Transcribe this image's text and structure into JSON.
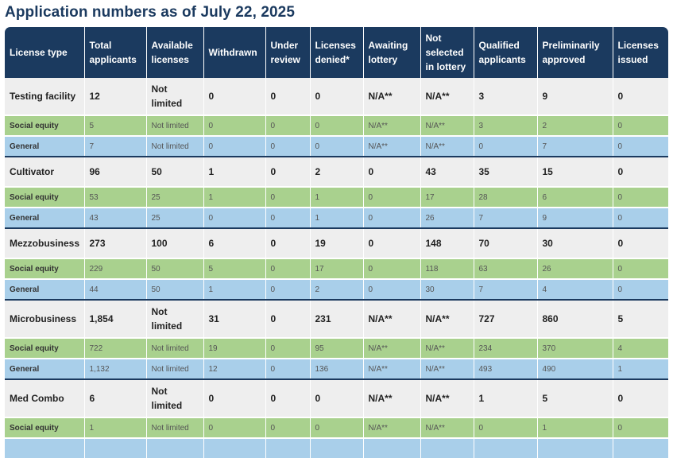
{
  "title": "Application numbers as of July 22, 2025",
  "columns": [
    "License type",
    "Total applicants",
    "Available licenses",
    "Withdrawn",
    "Under review",
    "Licenses denied*",
    "Awaiting lottery",
    "Not selected in lottery",
    "Qualified applicants",
    "Preliminarily approved",
    "Licenses issued"
  ],
  "rows": [
    {
      "kind": "total",
      "cells": [
        "Testing facility",
        "12",
        "Not limited",
        "0",
        "0",
        "0",
        "N/A**",
        "N/A**",
        "3",
        "9",
        "0"
      ]
    },
    {
      "kind": "social",
      "cells": [
        "Social equity",
        "5",
        "Not limited",
        "0",
        "0",
        "0",
        "N/A**",
        "N/A**",
        "3",
        "2",
        "0"
      ]
    },
    {
      "kind": "general",
      "cells": [
        "General",
        "7",
        "Not limited",
        "0",
        "0",
        "0",
        "N/A**",
        "N/A**",
        "0",
        "7",
        "0"
      ]
    },
    {
      "kind": "total",
      "cells": [
        "Cultivator",
        "96",
        "50",
        "1",
        "0",
        "2",
        "0",
        "43",
        "35",
        "15",
        "0"
      ]
    },
    {
      "kind": "social",
      "cells": [
        "Social equity",
        "53",
        "25",
        "1",
        "0",
        "1",
        "0",
        "17",
        "28",
        "6",
        "0"
      ]
    },
    {
      "kind": "general",
      "cells": [
        "General",
        "43",
        "25",
        "0",
        "0",
        "1",
        "0",
        "26",
        "7",
        "9",
        "0"
      ]
    },
    {
      "kind": "total",
      "cells": [
        "Mezzobusiness",
        "273",
        "100",
        "6",
        "0",
        "19",
        "0",
        "148",
        "70",
        "30",
        "0"
      ]
    },
    {
      "kind": "social",
      "cells": [
        "Social equity",
        "229",
        "50",
        "5",
        "0",
        "17",
        "0",
        "118",
        "63",
        "26",
        "0"
      ]
    },
    {
      "kind": "general",
      "cells": [
        "General",
        "44",
        "50",
        "1",
        "0",
        "2",
        "0",
        "30",
        "7",
        "4",
        "0"
      ]
    },
    {
      "kind": "total",
      "cells": [
        "Microbusiness",
        "1,854",
        "Not limited",
        "31",
        "0",
        "231",
        "N/A**",
        "N/A**",
        "727",
        "860",
        "5"
      ]
    },
    {
      "kind": "social",
      "cells": [
        "Social equity",
        "722",
        "Not limited",
        "19",
        "0",
        "95",
        "N/A**",
        "N/A**",
        "234",
        "370",
        "4"
      ]
    },
    {
      "kind": "general",
      "cells": [
        "General",
        "1,132",
        "Not limited",
        "12",
        "0",
        "136",
        "N/A**",
        "N/A**",
        "493",
        "490",
        "1"
      ]
    },
    {
      "kind": "total",
      "cells": [
        "Med Combo",
        "6",
        "Not limited",
        "0",
        "0",
        "0",
        "N/A**",
        "N/A**",
        "1",
        "5",
        "0"
      ]
    },
    {
      "kind": "social",
      "cells": [
        "Social equity",
        "1",
        "Not limited",
        "0",
        "0",
        "0",
        "N/A**",
        "N/A**",
        "0",
        "1",
        "0"
      ]
    },
    {
      "kind": "general",
      "cells": [
        "",
        "",
        "",
        "",
        "",
        "",
        "",
        "",
        "",
        "",
        ""
      ]
    }
  ]
}
